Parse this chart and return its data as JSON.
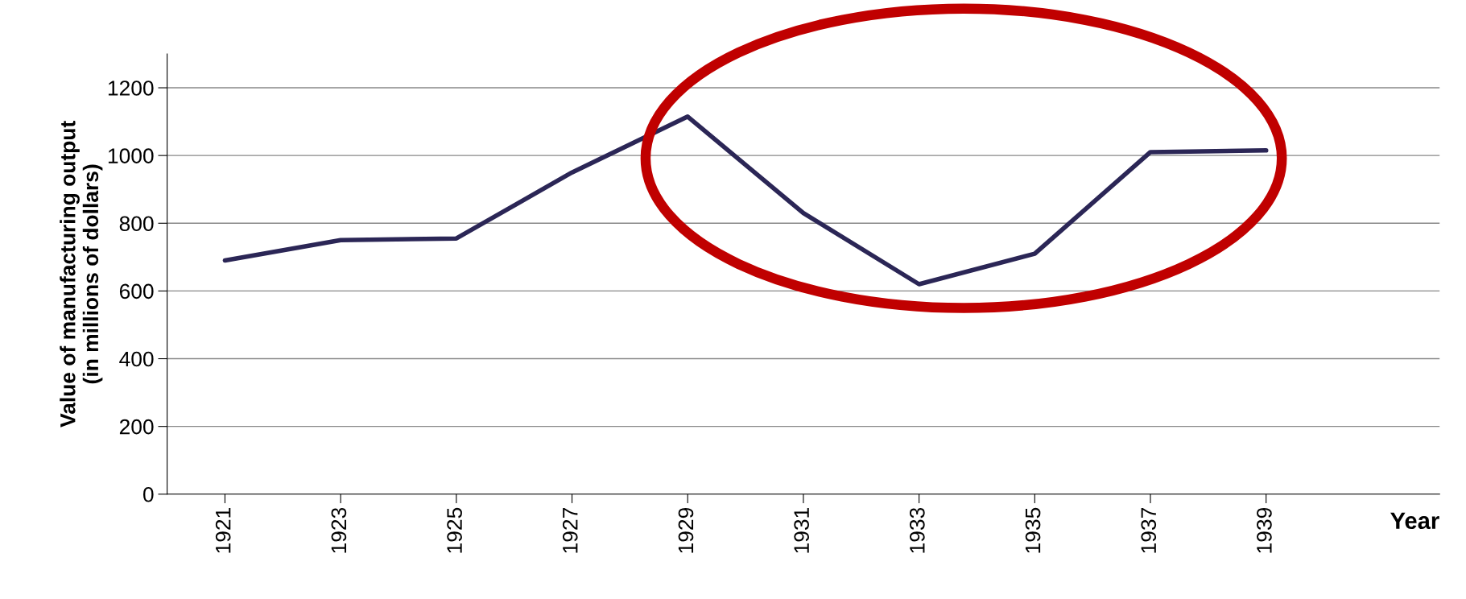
{
  "chart_data": {
    "type": "line",
    "xlabel": "Year",
    "ylabel": "Value of manufacturing output\n(in millions of dollars)",
    "x": [
      1921,
      1923,
      1925,
      1927,
      1929,
      1931,
      1933,
      1935,
      1937,
      1939
    ],
    "series": [
      {
        "color": "#2b2656",
        "values": [
          690,
          750,
          755,
          950,
          1115,
          830,
          620,
          710,
          1010,
          1015
        ]
      }
    ],
    "xlim": [
      1920,
      1942
    ],
    "xticks": [
      1921,
      1923,
      1925,
      1927,
      1929,
      1931,
      1933,
      1935,
      1937,
      1939
    ],
    "ylim": [
      0,
      1300
    ],
    "yticks": [
      0,
      200,
      400,
      600,
      800,
      1000,
      1200
    ],
    "grid": "y",
    "legend": false,
    "marker": "none",
    "line_style": "solid"
  }
}
